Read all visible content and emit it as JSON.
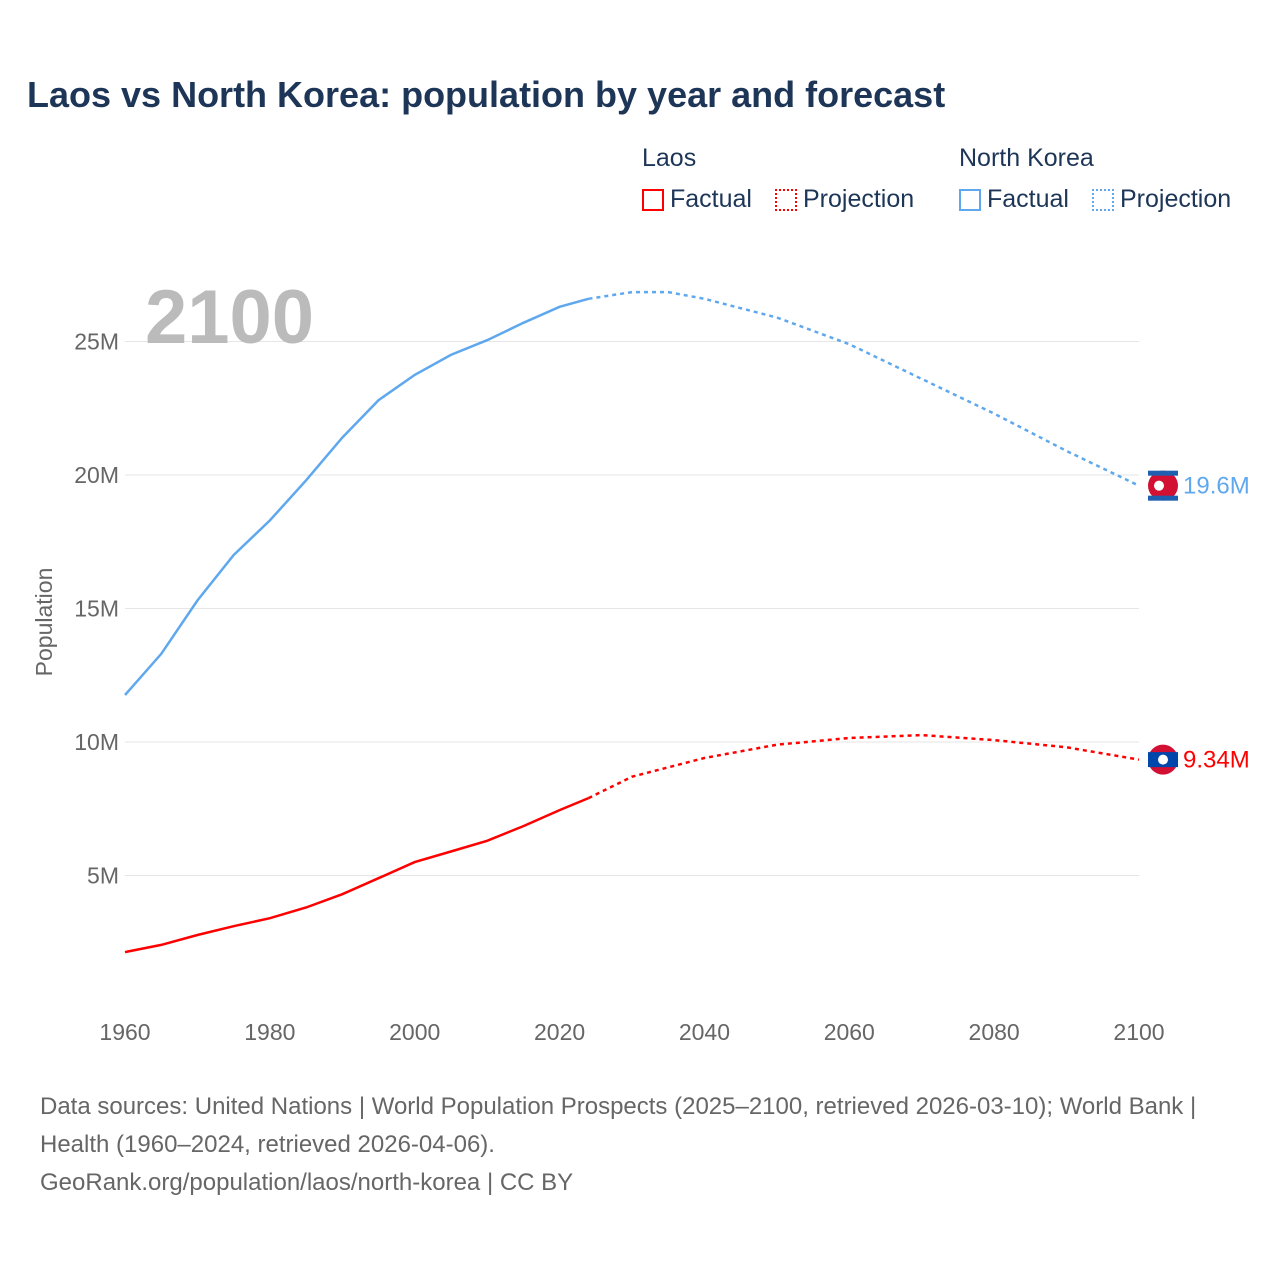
{
  "title": "Laos vs North Korea: population by year and forecast",
  "legend": {
    "laos": "Laos",
    "nk": "North Korea",
    "factual": "Factual",
    "projection": "Projection"
  },
  "year_label": "2100",
  "source": {
    "line1": "Data sources: United Nations | World Population Prospects (2025–2100, retrieved 2026-03-10); World Bank | Health (1960–2024, retrieved 2026-04-06).",
    "line2": "GeoRank.org/population/laos/north-korea | CC BY"
  },
  "colors": {
    "laos": "#ff0000",
    "nk": "#5fa8ee"
  },
  "chart_data": {
    "type": "line",
    "title": "Laos vs North Korea: population by year and forecast",
    "xlabel": "",
    "ylabel": "Population",
    "xlim": [
      1960,
      2100
    ],
    "ylim": [
      0,
      27.5
    ],
    "xticks": [
      1960,
      1980,
      2000,
      2020,
      2040,
      2060,
      2080,
      2100
    ],
    "yticks": [
      {
        "v": 5,
        "label": "5M"
      },
      {
        "v": 10,
        "label": "10M"
      },
      {
        "v": 15,
        "label": "15M"
      },
      {
        "v": 20,
        "label": "20M"
      },
      {
        "v": 25,
        "label": "25M"
      }
    ],
    "grid": true,
    "unit": "millions",
    "series": [
      {
        "name": "North Korea",
        "end_label": "19.6M",
        "color": "#5fa8ee",
        "factual": [
          [
            1960,
            11.76
          ],
          [
            1965,
            13.3
          ],
          [
            1970,
            15.3
          ],
          [
            1975,
            17.0
          ],
          [
            1980,
            18.3
          ],
          [
            1985,
            19.8
          ],
          [
            1990,
            21.4
          ],
          [
            1995,
            22.8
          ],
          [
            2000,
            23.75
          ],
          [
            2005,
            24.5
          ],
          [
            2010,
            25.05
          ],
          [
            2015,
            25.7
          ],
          [
            2020,
            26.3
          ],
          [
            2024,
            26.6
          ]
        ],
        "projection": [
          [
            2024,
            26.6
          ],
          [
            2030,
            26.85
          ],
          [
            2035,
            26.85
          ],
          [
            2040,
            26.6
          ],
          [
            2050,
            25.9
          ],
          [
            2060,
            24.9
          ],
          [
            2070,
            23.6
          ],
          [
            2080,
            22.3
          ],
          [
            2090,
            20.9
          ],
          [
            2100,
            19.6
          ]
        ]
      },
      {
        "name": "Laos",
        "end_label": "9.34M",
        "color": "#ff0000",
        "factual": [
          [
            1960,
            2.13
          ],
          [
            1965,
            2.4
          ],
          [
            1970,
            2.77
          ],
          [
            1975,
            3.1
          ],
          [
            1980,
            3.4
          ],
          [
            1985,
            3.8
          ],
          [
            1990,
            4.3
          ],
          [
            1995,
            4.9
          ],
          [
            2000,
            5.5
          ],
          [
            2005,
            5.9
          ],
          [
            2010,
            6.3
          ],
          [
            2015,
            6.85
          ],
          [
            2020,
            7.45
          ],
          [
            2024,
            7.9
          ]
        ],
        "projection": [
          [
            2024,
            7.9
          ],
          [
            2030,
            8.7
          ],
          [
            2040,
            9.4
          ],
          [
            2050,
            9.9
          ],
          [
            2060,
            10.15
          ],
          [
            2070,
            10.26
          ],
          [
            2080,
            10.07
          ],
          [
            2090,
            9.8
          ],
          [
            2100,
            9.34
          ]
        ]
      }
    ]
  }
}
